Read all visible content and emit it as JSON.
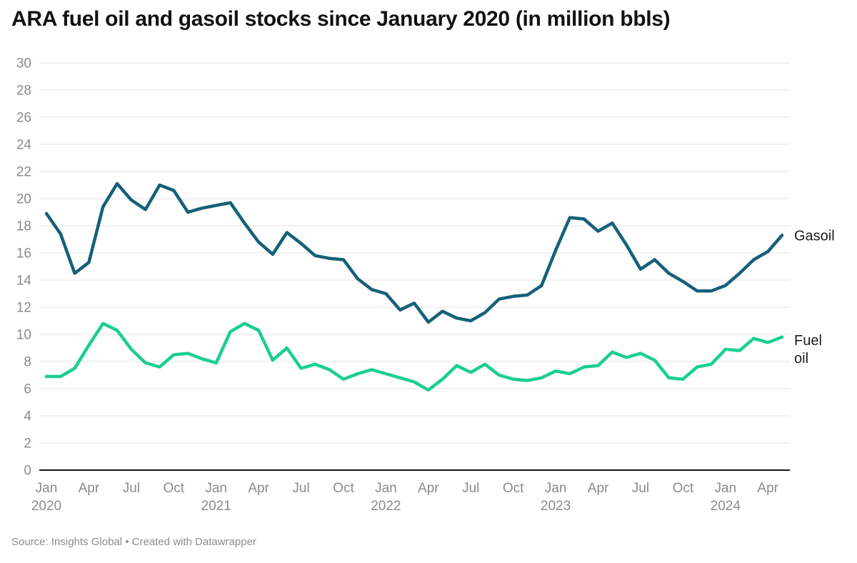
{
  "title": "ARA fuel oil and gasoil stocks since January 2020 (in million bbls)",
  "source_note": "Source: Insights Global • Created with Datawrapper",
  "colors": {
    "gasoil": "#15607a",
    "fuel_oil": "#1bce93",
    "grid": "#e3e3e3",
    "axis": "#161616",
    "tick_label": "#8b8b8b",
    "title": "#121212",
    "source": "#8c8c8c"
  },
  "chart_data": {
    "type": "line",
    "title": "ARA fuel oil and gasoil stocks since January 2020 (in million bbls)",
    "x_unit": "month",
    "x_start_month": "Jan 2020",
    "x_end_month": "May 2024",
    "grid": true,
    "ylim": [
      0,
      30
    ],
    "y_tick_step": 2,
    "legend_position": "line-end-labels",
    "x_ticks": [
      {
        "month": "Jan",
        "year": "2020"
      },
      {
        "month": "Apr",
        "year": ""
      },
      {
        "month": "Jul",
        "year": ""
      },
      {
        "month": "Oct",
        "year": ""
      },
      {
        "month": "Jan",
        "year": "2021"
      },
      {
        "month": "Apr",
        "year": ""
      },
      {
        "month": "Jul",
        "year": ""
      },
      {
        "month": "Oct",
        "year": ""
      },
      {
        "month": "Jan",
        "year": "2022"
      },
      {
        "month": "Apr",
        "year": ""
      },
      {
        "month": "Jul",
        "year": ""
      },
      {
        "month": "Oct",
        "year": ""
      },
      {
        "month": "Jan",
        "year": "2023"
      },
      {
        "month": "Apr",
        "year": ""
      },
      {
        "month": "Jul",
        "year": ""
      },
      {
        "month": "Oct",
        "year": ""
      },
      {
        "month": "Jan",
        "year": "2024"
      },
      {
        "month": "Apr",
        "year": ""
      }
    ],
    "x_tick_month_interval": 3,
    "series": [
      {
        "name": "Gasoil",
        "label_lines": [
          "Gasoil"
        ],
        "color": "#15607a",
        "values": [
          18.9,
          17.4,
          14.5,
          15.3,
          19.4,
          21.1,
          19.9,
          19.2,
          21.0,
          20.6,
          19.0,
          19.3,
          19.5,
          19.7,
          18.2,
          16.8,
          15.9,
          17.5,
          16.7,
          15.8,
          15.6,
          15.5,
          14.1,
          13.3,
          13.0,
          11.8,
          12.3,
          10.9,
          11.7,
          11.2,
          11.0,
          11.6,
          12.6,
          12.8,
          12.9,
          13.6,
          16.2,
          18.6,
          18.5,
          17.6,
          18.2,
          16.6,
          14.8,
          15.5,
          14.5,
          13.9,
          13.2,
          13.2,
          13.6,
          14.5,
          15.5,
          16.1,
          17.3
        ]
      },
      {
        "name": "Fuel oil",
        "label_lines": [
          "Fuel",
          "oil"
        ],
        "color": "#1bce93",
        "values": [
          6.9,
          6.9,
          7.5,
          9.2,
          10.8,
          10.3,
          8.9,
          7.9,
          7.6,
          8.5,
          8.6,
          8.2,
          7.9,
          10.2,
          10.8,
          10.3,
          8.1,
          9.0,
          7.5,
          7.8,
          7.4,
          6.7,
          7.1,
          7.4,
          7.1,
          6.8,
          6.5,
          5.9,
          6.7,
          7.7,
          7.2,
          7.8,
          7.0,
          6.7,
          6.6,
          6.8,
          7.3,
          7.1,
          7.6,
          7.7,
          8.7,
          8.3,
          8.6,
          8.1,
          6.8,
          6.7,
          7.6,
          7.8,
          8.9,
          8.8,
          9.7,
          9.4,
          9.8
        ]
      }
    ]
  }
}
